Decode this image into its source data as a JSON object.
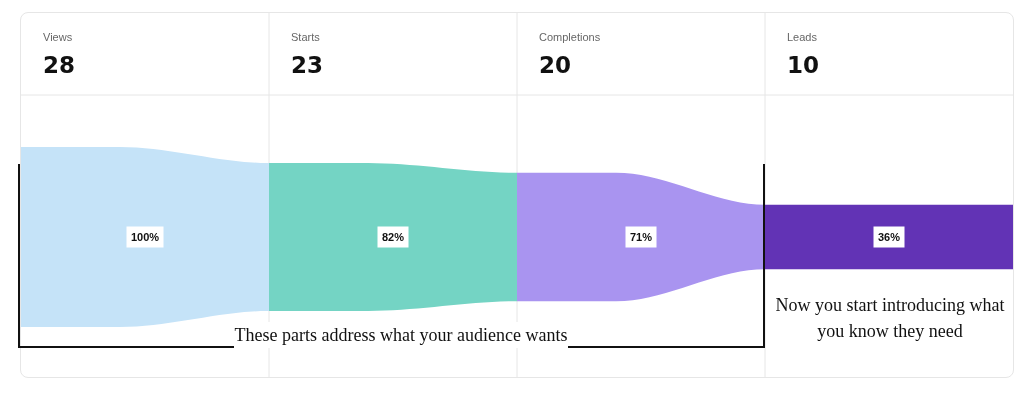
{
  "chart_data": {
    "type": "other",
    "categories": [
      "Views",
      "Starts",
      "Completions",
      "Leads"
    ],
    "values": [
      28,
      23,
      20,
      10
    ],
    "data_labels": true,
    "colors": [
      "#c5e3f8",
      "#74d4c4",
      "#a994f0",
      "#6233b5"
    ],
    "annotations": [
      {
        "text": "100%",
        "x": "Views"
      },
      {
        "text": "82%",
        "x": "Starts"
      },
      {
        "text": "71%",
        "x": "Completions"
      },
      {
        "text": "36%",
        "x": "Leads"
      },
      "These parts address what your audience wants",
      "Now you start introducing what you know they need"
    ]
  }
}
